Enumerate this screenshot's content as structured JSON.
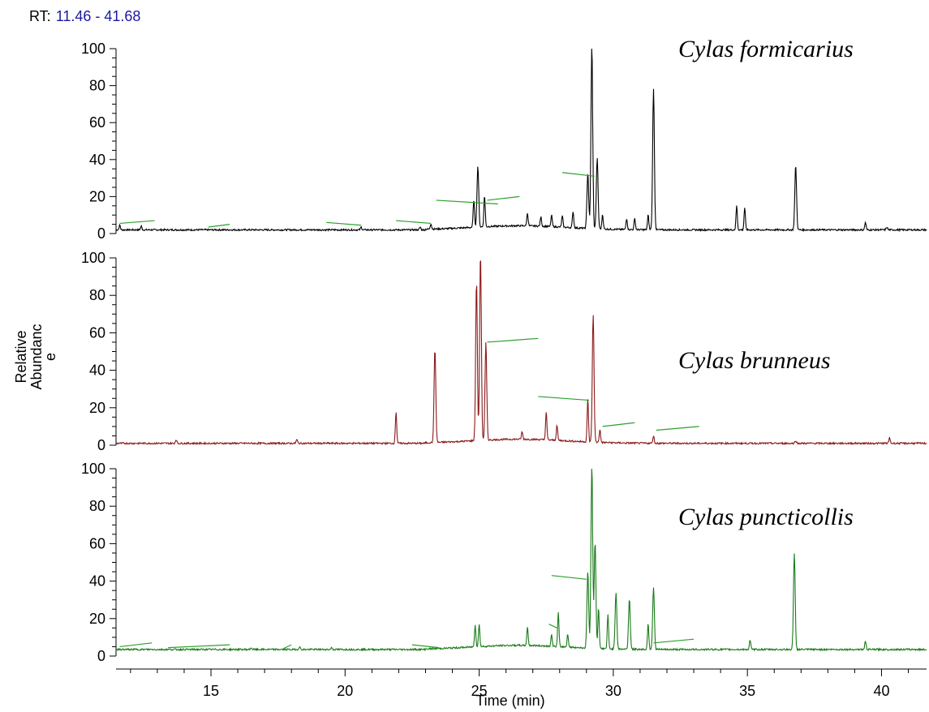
{
  "header": {
    "rt_label": "RT:",
    "rt_range": "11.46 - 41.68"
  },
  "chart_data": {
    "type": "line",
    "xlabel": "Time (min)",
    "ylabel_lines": [
      "Relative",
      "Abundanc",
      "e"
    ],
    "xlim": [
      11.46,
      41.68
    ],
    "xticks": [
      15,
      20,
      25,
      30,
      35,
      40
    ],
    "ylim": [
      0,
      100
    ],
    "yticks": [
      0,
      20,
      40,
      60,
      80,
      100
    ],
    "panels": [
      {
        "name": "Cylas formicarius",
        "color": "#000000",
        "ytick_labels": [
          "0",
          "20",
          "40",
          "60",
          "80",
          "100"
        ],
        "baseline": 2,
        "peaks": [
          [
            11.6,
            2.5
          ],
          [
            12.4,
            2
          ],
          [
            20.6,
            1.5
          ],
          [
            22.8,
            1.5
          ],
          [
            23.2,
            3
          ],
          [
            24.8,
            15
          ],
          [
            24.95,
            33
          ],
          [
            25.2,
            17
          ],
          [
            26.8,
            7
          ],
          [
            27.3,
            5
          ],
          [
            27.7,
            6
          ],
          [
            28.1,
            6
          ],
          [
            28.5,
            9
          ],
          [
            29.05,
            30
          ],
          [
            29.2,
            100
          ],
          [
            29.4,
            38
          ],
          [
            29.6,
            8
          ],
          [
            30.5,
            6
          ],
          [
            30.8,
            6
          ],
          [
            31.3,
            8
          ],
          [
            31.5,
            76
          ],
          [
            34.6,
            13
          ],
          [
            34.9,
            12
          ],
          [
            36.8,
            35
          ],
          [
            39.4,
            4
          ],
          [
            40.2,
            1.5
          ]
        ],
        "annotations": [
          [
            11.6,
            5.5,
            12.9,
            7
          ],
          [
            14.9,
            3.5,
            15.7,
            5
          ],
          [
            19.3,
            6,
            20.6,
            4.5
          ],
          [
            21.9,
            7,
            23.2,
            5.5
          ],
          [
            23.4,
            18,
            25.7,
            16
          ],
          [
            25.3,
            18,
            26.5,
            20
          ],
          [
            28.1,
            33,
            29.3,
            31
          ]
        ]
      },
      {
        "name": "Cylas brunneus",
        "color": "#8b1a1a",
        "ytick_labels": [
          "0",
          "20",
          "40",
          "60",
          "80",
          "100"
        ],
        "baseline": 1,
        "peaks": [
          [
            13.7,
            2
          ],
          [
            18.2,
            2
          ],
          [
            21.9,
            17
          ],
          [
            23.35,
            50
          ],
          [
            24.9,
            85
          ],
          [
            25.05,
            100
          ],
          [
            25.25,
            52
          ],
          [
            26.6,
            4
          ],
          [
            27.5,
            15
          ],
          [
            27.9,
            8
          ],
          [
            29.05,
            23
          ],
          [
            29.25,
            68
          ],
          [
            29.5,
            7
          ],
          [
            31.5,
            4
          ],
          [
            36.8,
            1.5
          ],
          [
            40.3,
            3
          ]
        ],
        "annotations": [
          [
            25.3,
            55,
            27.2,
            57
          ],
          [
            27.2,
            26,
            29.1,
            24
          ],
          [
            29.6,
            10,
            30.8,
            12
          ],
          [
            31.6,
            8,
            33.2,
            10
          ]
        ]
      },
      {
        "name": "Cylas puncticollis",
        "color": "#1a7a1a",
        "ytick_labels": [
          "0",
          "20",
          "40",
          "60",
          "80",
          "100"
        ],
        "baseline": 3.5,
        "peaks": [
          [
            16.5,
            1
          ],
          [
            18.3,
            1.5
          ],
          [
            19.5,
            1
          ],
          [
            24.85,
            12
          ],
          [
            25.0,
            12
          ],
          [
            26.8,
            10
          ],
          [
            27.7,
            6
          ],
          [
            27.95,
            18
          ],
          [
            28.3,
            7
          ],
          [
            29.05,
            41
          ],
          [
            29.2,
            100
          ],
          [
            29.32,
            57
          ],
          [
            29.45,
            22
          ],
          [
            29.8,
            18
          ],
          [
            30.1,
            30
          ],
          [
            30.6,
            27
          ],
          [
            31.3,
            14
          ],
          [
            31.5,
            33
          ],
          [
            35.1,
            5
          ],
          [
            36.75,
            51
          ],
          [
            39.4,
            4.5
          ]
        ],
        "annotations": [
          [
            11.6,
            5,
            12.8,
            7
          ],
          [
            13.4,
            4.5,
            15.7,
            6
          ],
          [
            17.7,
            4,
            18.0,
            6
          ],
          [
            22.5,
            6,
            23.5,
            4.5
          ],
          [
            27.6,
            17,
            27.9,
            15
          ],
          [
            27.7,
            43,
            29.0,
            41
          ],
          [
            31.5,
            7,
            33.0,
            9
          ]
        ]
      }
    ]
  }
}
